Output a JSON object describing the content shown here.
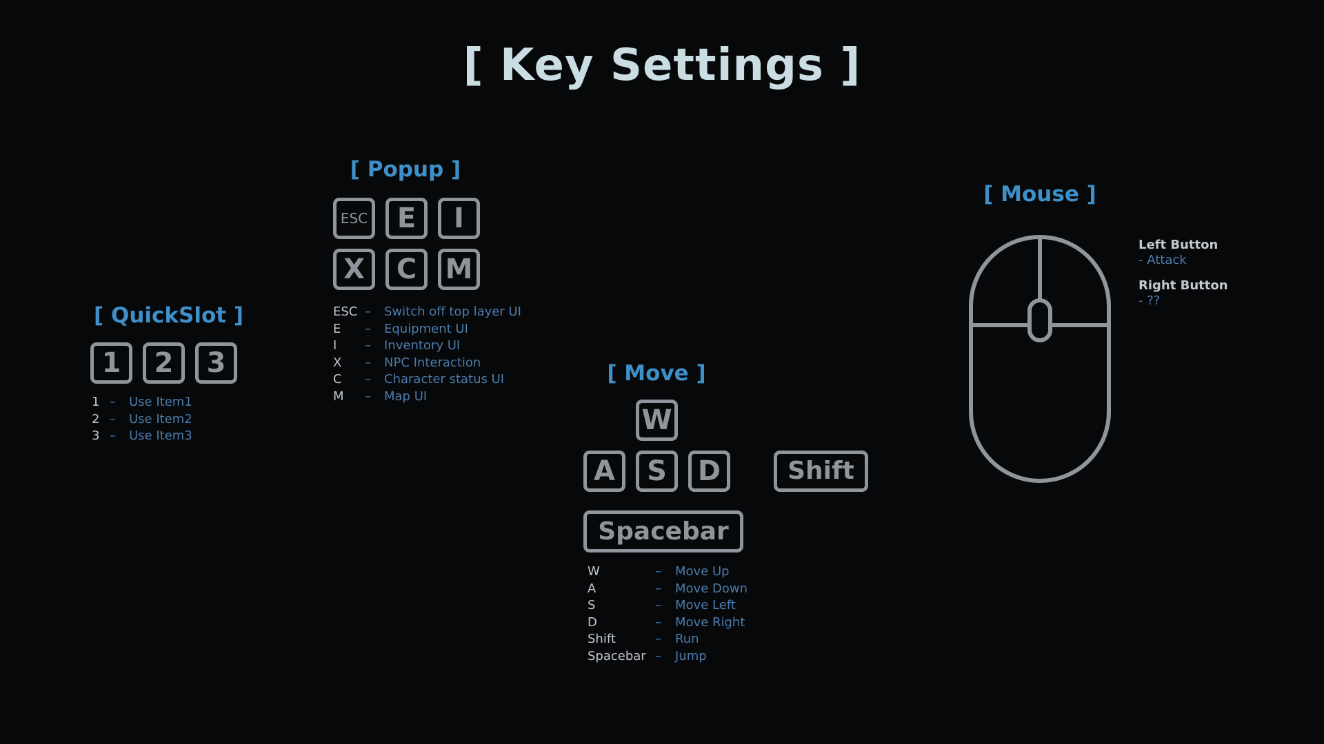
{
  "title": "[ Key Settings ]",
  "quickslot": {
    "title": "[ QuickSlot ]",
    "keys": [
      "1",
      "2",
      "3"
    ],
    "legend": [
      {
        "key": "1",
        "desc": "Use Item1"
      },
      {
        "key": "2",
        "desc": "Use Item2"
      },
      {
        "key": "3",
        "desc": "Use Item3"
      }
    ]
  },
  "popup": {
    "title": "[ Popup ]",
    "keys_row1": [
      "ESC",
      "E",
      "I"
    ],
    "keys_row2": [
      "X",
      "C",
      "M"
    ],
    "legend": [
      {
        "key": "ESC",
        "desc": "Switch off top layer UI"
      },
      {
        "key": "E",
        "desc": "Equipment UI"
      },
      {
        "key": "I",
        "desc": "Inventory UI"
      },
      {
        "key": "X",
        "desc": "NPC Interaction"
      },
      {
        "key": "C",
        "desc": "Character status UI"
      },
      {
        "key": "M",
        "desc": "Map UI"
      }
    ]
  },
  "move": {
    "title": "[ Move ]",
    "key_up": "W",
    "keys_row": [
      "A",
      "S",
      "D"
    ],
    "key_run": "Shift",
    "key_jump": "Spacebar",
    "legend": [
      {
        "key": "W",
        "desc": "Move Up"
      },
      {
        "key": "A",
        "desc": "Move Down"
      },
      {
        "key": "S",
        "desc": "Move Left"
      },
      {
        "key": "D",
        "desc": "Move Right"
      },
      {
        "key": "Shift",
        "desc": "Run"
      },
      {
        "key": "Spacebar",
        "desc": "Jump"
      }
    ]
  },
  "mouse": {
    "title": "[ Mouse ]",
    "left_button": {
      "name": "Left Button",
      "action": "- Attack"
    },
    "right_button": {
      "name": "Right Button",
      "action": "- ??"
    }
  },
  "dash": "–",
  "colors": {
    "background": "#07080a",
    "title": "#c9dde3",
    "section_title": "#3f8fc9",
    "key_outline": "#8f959b",
    "legend_key": "#c4c8cc",
    "legend_desc": "#4c7cab"
  }
}
